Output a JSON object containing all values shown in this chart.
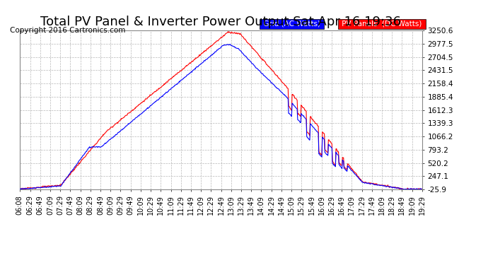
{
  "title": "Total PV Panel & Inverter Power Output Sat Apr 16 19:36",
  "copyright": "Copyright 2016 Cartronics.com",
  "legend_grid": "Grid (AC Watts)",
  "legend_pv": "PV Panels  (DC Watts)",
  "yticks": [
    3250.6,
    2977.5,
    2704.5,
    2431.5,
    2158.4,
    1885.4,
    1612.3,
    1339.3,
    1066.2,
    793.2,
    520.2,
    247.1,
    -25.9
  ],
  "ymin": -25.9,
  "ymax": 3250.6,
  "color_grid": "#0000ff",
  "color_pv": "#ff0000",
  "bg_color": "#ffffff",
  "plot_bg_color": "#ffffff",
  "grid_color": "#b0b0b0",
  "title_fontsize": 13,
  "copyright_fontsize": 7.5,
  "tick_fontsize": 7.5,
  "xtick_labels": [
    "06:08",
    "06:29",
    "06:49",
    "07:09",
    "07:29",
    "07:49",
    "08:09",
    "08:29",
    "08:49",
    "09:09",
    "09:29",
    "09:49",
    "10:09",
    "10:29",
    "10:49",
    "11:09",
    "11:29",
    "11:49",
    "12:09",
    "12:29",
    "12:49",
    "13:09",
    "13:29",
    "13:49",
    "14:09",
    "14:29",
    "14:49",
    "15:09",
    "15:29",
    "15:49",
    "16:09",
    "16:29",
    "16:49",
    "17:09",
    "17:29",
    "17:49",
    "18:09",
    "18:29",
    "18:49",
    "19:09",
    "19:29"
  ]
}
